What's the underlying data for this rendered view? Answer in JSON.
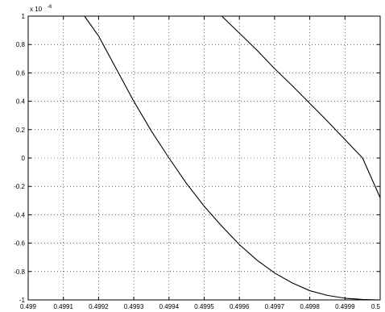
{
  "chart_data": {
    "type": "line",
    "title": "",
    "xlabel": "",
    "ylabel": "",
    "xlim": [
      0.499,
      0.5
    ],
    "ylim": [
      -1,
      1
    ],
    "y_exponent_label": {
      "base": "x 10",
      "exponent": "-6"
    },
    "grid": true,
    "x_ticks": [
      "0.499",
      "0.4991",
      "0.4992",
      "0.4993",
      "0.4994",
      "0.4995",
      "0.4996",
      "0.4997",
      "0.4998",
      "0.4999",
      "0.5"
    ],
    "y_ticks": [
      "1",
      "0.8",
      "0.6",
      "0.4",
      "0.2",
      "0",
      "-0.2",
      "-0.4",
      "-0.6",
      "-0.8",
      "-1"
    ],
    "series": [
      {
        "color": "#000000",
        "x": [
          0.49916,
          0.4992,
          0.49925,
          0.4993,
          0.49935,
          0.4994,
          0.49945,
          0.4995,
          0.49955,
          0.4996,
          0.49965,
          0.4997,
          0.49975,
          0.4998,
          0.49985,
          0.4999,
          0.49995,
          0.5
        ],
        "y": [
          1.0,
          0.86,
          0.63,
          0.4,
          0.19,
          0.0,
          -0.18,
          -0.34,
          -0.48,
          -0.61,
          -0.72,
          -0.81,
          -0.88,
          -0.935,
          -0.968,
          -0.988,
          -0.997,
          -1.0
        ]
      },
      {
        "color": "#000000",
        "x": [
          0.49955,
          0.4996,
          0.49965,
          0.4997,
          0.49975,
          0.4998,
          0.49985,
          0.4999,
          0.49995,
          0.5
        ],
        "y": [
          1.0,
          0.88,
          0.76,
          0.63,
          0.51,
          0.385,
          0.26,
          0.13,
          0.0,
          -0.28
        ]
      }
    ]
  }
}
